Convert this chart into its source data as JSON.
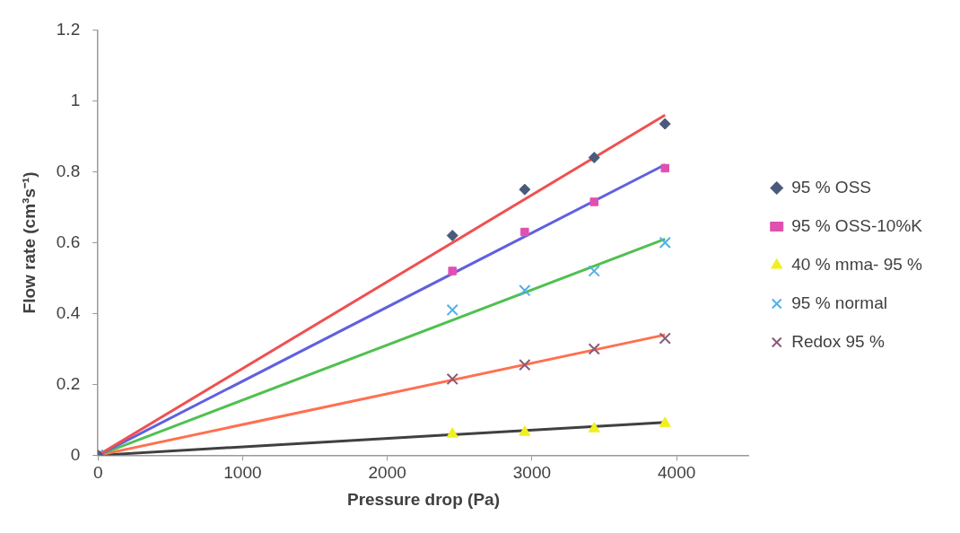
{
  "chart_data": {
    "type": "scatter",
    "xlabel": "Pressure drop (Pa)",
    "ylabel": "Flow rate (cm³s⁻¹)",
    "xlim": [
      0,
      4500
    ],
    "xticks": [
      0,
      1000,
      2000,
      3000,
      4000
    ],
    "ylim": [
      0,
      1.2
    ],
    "yticks": [
      0,
      0.2,
      0.4,
      0.6,
      0.8,
      1,
      1.2
    ],
    "grid": false,
    "legend": "right",
    "series": [
      {
        "name": "95 % OSS",
        "color": "#4a5a7a",
        "marker": "diamond",
        "x": [
          0,
          2450,
          2950,
          3430,
          3920
        ],
        "values": [
          0,
          0.62,
          0.75,
          0.84,
          0.935
        ]
      },
      {
        "name": "95 % OSS-10%K",
        "color": "#e050b0",
        "marker": "square",
        "x": [
          0,
          2450,
          2950,
          3430,
          3920
        ],
        "values": [
          0,
          0.52,
          0.63,
          0.715,
          0.81
        ]
      },
      {
        "name": "40 % mma- 95 %",
        "color": "#f0f020",
        "marker": "triangle",
        "x": [
          0,
          2450,
          2950,
          3430,
          3920
        ],
        "values": [
          0,
          0.06,
          0.065,
          0.075,
          0.09
        ]
      },
      {
        "name": "95 % normal",
        "color": "#50b0e8",
        "marker": "cross",
        "x": [
          0,
          2450,
          2950,
          3430,
          3920
        ],
        "values": [
          0,
          0.41,
          0.465,
          0.52,
          0.6
        ]
      },
      {
        "name": "Redox 95 %",
        "color": "#8a5a7a",
        "marker": "cross",
        "x": [
          0,
          2450,
          2950,
          3430,
          3920
        ],
        "values": [
          0,
          0.215,
          0.255,
          0.3,
          0.33
        ]
      },
      {
        "type": "line",
        "color": "#f05050",
        "x": [
          0,
          3920
        ],
        "values": [
          0,
          0.96
        ]
      },
      {
        "type": "line",
        "color": "#6060e0",
        "x": [
          0,
          3920
        ],
        "values": [
          0,
          0.82
        ]
      },
      {
        "type": "line",
        "color": "#50c050",
        "x": [
          0,
          3920
        ],
        "values": [
          0,
          0.61
        ]
      },
      {
        "type": "line",
        "color": "#ff7050",
        "x": [
          0,
          3920
        ],
        "values": [
          0,
          0.34
        ]
      },
      {
        "type": "line",
        "color": "#404040",
        "x": [
          0,
          3920
        ],
        "values": [
          0,
          0.093
        ]
      }
    ]
  }
}
